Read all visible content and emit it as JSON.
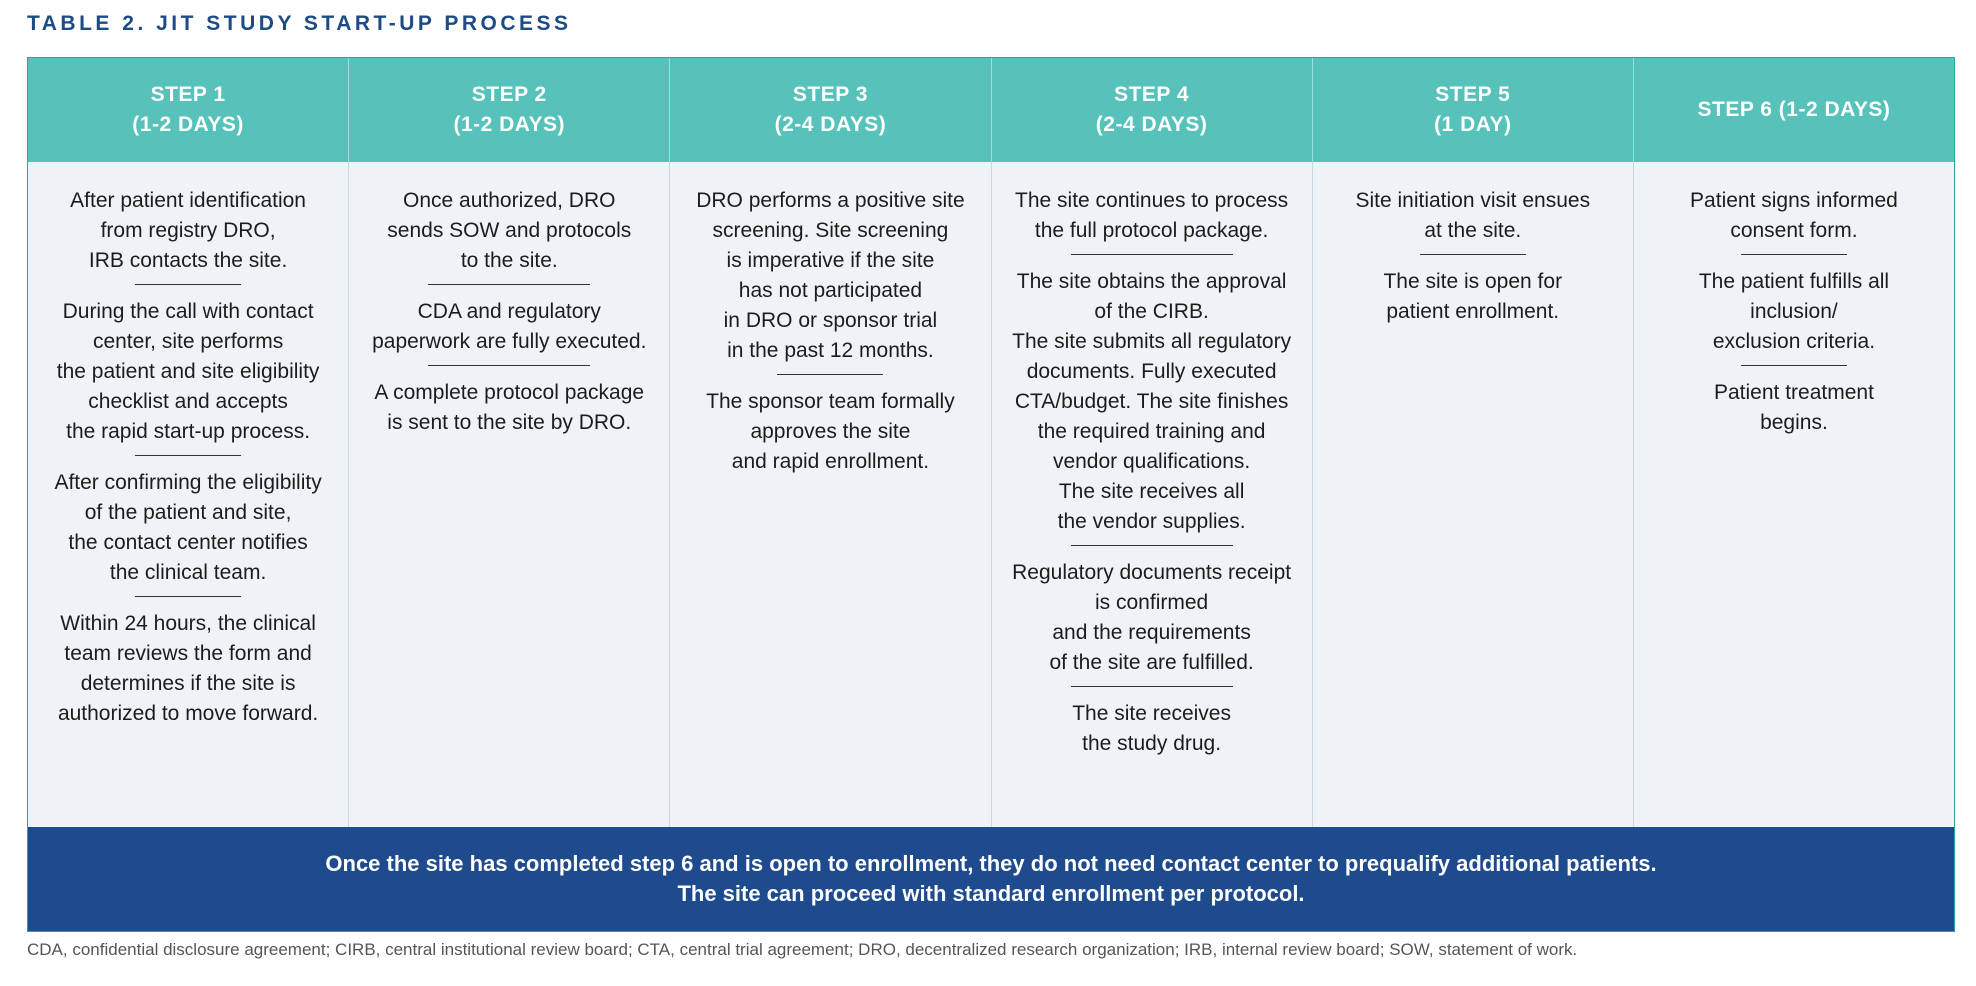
{
  "title": "TABLE 2. JIT STUDY START-UP PROCESS",
  "columns": [
    {
      "header": "STEP 1\n(1-2 DAYS)",
      "blocks": [
        "After patient identification\nfrom registry DRO,\nIRB contacts the site.",
        "During the call with contact\ncenter, site performs\nthe patient and site eligibility\nchecklist and accepts\nthe rapid start-up process.",
        "After confirming the eligibility\nof the patient and site,\nthe contact center notifies\nthe clinical team.",
        "Within 24 hours, the clinical\nteam reviews the form and\ndetermines if the site is\nauthorized to move forward."
      ]
    },
    {
      "header": "STEP 2\n(1-2 DAYS)",
      "blocks": [
        "Once authorized, DRO\nsends SOW and protocols\nto the site.",
        "CDA and regulatory\npaperwork are fully executed.",
        "A complete protocol package\nis sent to the site by DRO."
      ]
    },
    {
      "header": "STEP 3\n(2-4 DAYS)",
      "blocks": [
        "DRO performs a positive site\nscreening. Site screening\nis imperative if the site\nhas not participated\nin DRO or sponsor trial\nin the past 12 months.",
        "The sponsor team formally\napproves the site\nand rapid enrollment."
      ]
    },
    {
      "header": "STEP 4\n(2-4 DAYS)",
      "blocks": [
        "The site continues to process\nthe full protocol package.",
        "The site obtains the approval\nof the CIRB.\nThe site submits all regulatory\ndocuments. Fully executed\nCTA/budget. The site finishes\nthe required training and\nvendor qualifications.\nThe site receives all\nthe vendor supplies.",
        "Regulatory documents receipt\nis confirmed\nand the requirements\nof the site are fulfilled.",
        "The site receives\nthe study drug."
      ]
    },
    {
      "header": "STEP 5\n(1 DAY)",
      "blocks": [
        "Site initiation visit ensues\nat the site.",
        "The site is open for\npatient enrollment."
      ]
    },
    {
      "header": "STEP 6 (1-2 DAYS)",
      "blocks": [
        "Patient signs informed\nconsent form.",
        "The patient fulfills all\ninclusion/\nexclusion criteria.",
        "Patient treatment\nbegins."
      ]
    }
  ],
  "footer": {
    "line1": "Once the site has completed step 6 and is open to enrollment, they do not need contact center to prequalify additional patients.",
    "line2": "The site can proceed with standard enrollment per protocol."
  },
  "footnote": "CDA, confidential disclosure agreement; CIRB, central institutional review board; CTA, central trial agreement; DRO, decentralized research organization; IRB, internal review board; SOW, statement of work."
}
